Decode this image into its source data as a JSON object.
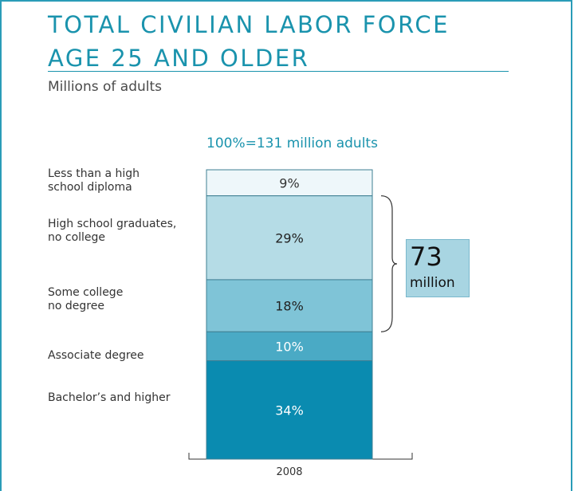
{
  "header": {
    "title_line1": "TOTAL CIVILIAN LABOR FORCE",
    "title_line2": "AGE 25 AND OLDER",
    "subtitle": "Millions of adults"
  },
  "chart_data": {
    "type": "bar",
    "stacked": true,
    "categories": [
      "2008"
    ],
    "total_label": "100%=131 million adults",
    "series": [
      {
        "name": "Less than a high school diploma",
        "value": 9,
        "label": "9%",
        "color": "#eef7fa",
        "text_color": "#333333"
      },
      {
        "name": "High school graduates, no college",
        "value": 29,
        "label": "29%",
        "color": "#b5dce6",
        "text_color": "#222222"
      },
      {
        "name": "Some college no degree",
        "value": 18,
        "label": "18%",
        "color": "#7fc4d7",
        "text_color": "#222222"
      },
      {
        "name": "Associate degree",
        "value": 10,
        "label": "10%",
        "color": "#4aaac5",
        "text_color": "#ffffff"
      },
      {
        "name": "Bachelor’s and higher",
        "value": 34,
        "label": "34%",
        "color": "#0a8bb0",
        "text_color": "#ffffff"
      }
    ],
    "ylim": [
      0,
      100
    ],
    "category_label_lines": [
      [
        "Less than a high",
        "school diploma"
      ],
      [
        "High school graduates,",
        "no college"
      ],
      [
        "Some college",
        "no degree"
      ],
      [
        "Associate degree"
      ],
      [
        "Bachelor’s and higher"
      ]
    ],
    "bracket": {
      "from_index": 1,
      "to_index": 2,
      "value": "73",
      "unit": "million"
    }
  }
}
